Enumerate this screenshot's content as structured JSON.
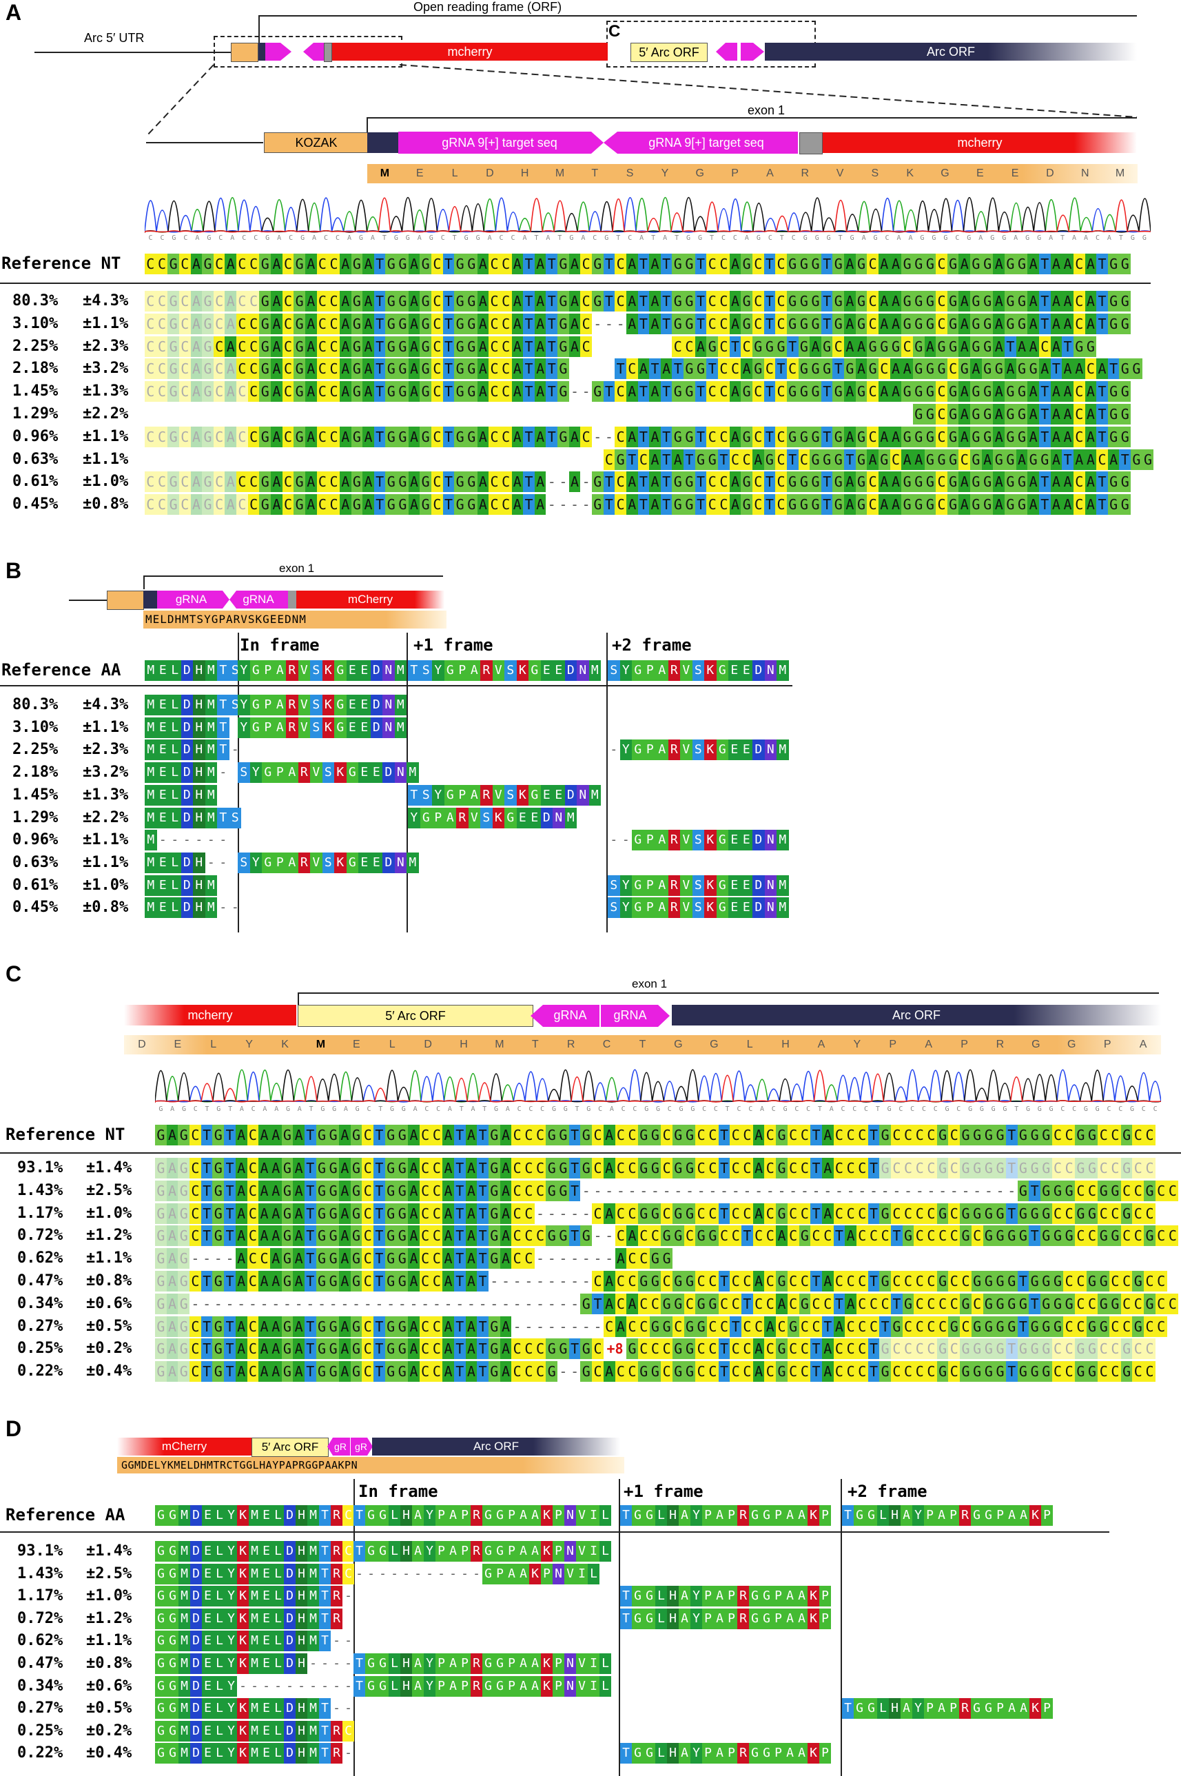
{
  "panels": {
    "A": "A",
    "B": "B",
    "C": "C",
    "D": "D"
  },
  "panelA": {
    "top_map": {
      "orf_label": "Open reading frame (ORF)",
      "utr_label": "Arc 5′ UTR",
      "mcherry": "mcherry",
      "arc5orf": "5′ Arc ORF",
      "arcorf": "Arc ORF",
      "c_box": "C"
    },
    "zoom_map": {
      "kozak": "KOZAK",
      "exon": "exon 1",
      "grna1": "gRNA 9[+] target seq",
      "grna2": "gRNA 9[+] target seq",
      "mcherry": "mcherry"
    },
    "aa_track": [
      "M",
      "E",
      "L",
      "D",
      "H",
      "M",
      "T",
      "S",
      "Y",
      "G",
      "P",
      "A",
      "R",
      "V",
      "S",
      "K",
      "G",
      "E",
      "E",
      "D",
      "N",
      "M"
    ],
    "chrom_seq": "CCGCAGCACCGACGACCAGATGGAGCTGGACCATATGACGTCATATGGTCCAGCTCGGGTGAGCAAGGGCGAGGAGGATAACATGG",
    "ref_label": "Reference NT",
    "ref_seq": "CCGCAGCACCGACGACCAGATGGAGCTGGACCATATGACGTCATATGGTCCAGCTCGGGTGAGCAAGGGCGAGGAGGATAACATGG",
    "rows": [
      {
        "pct": "80.3%",
        "err": "±4.3%",
        "seq": "CCGCAGCACCGACGACCAGATGGAGCTGGACCATATGACGTCATATGGTCCAGCTCGGGTGAGCAAGGGCGAGGAGGATAACATGG",
        "fade": 10
      },
      {
        "pct": "3.10%",
        "err": "±1.1%",
        "seq": "CCGCAGCACCGACGACCAGATGGAGCTGGACCATATGAC---ATATGGTCCAGCTCGGGTGAGCAAGGGCGAGGAGGATAACATGG",
        "fade": 8
      },
      {
        "pct": "2.25%",
        "err": "±2.3%",
        "seq": "CCGCAGCACCGACGACCAGATGGAGCTGGACCATATGAC       CCAGCTCGGGTGAGCAAGGGCGAGGAGGATAACATGG",
        "fade": 6
      },
      {
        "pct": "2.18%",
        "err": "±3.2%",
        "seq": "CCGCAGCACCGACGACCAGATGGAGCTGGACCATATG    TCATATGGTCCAGCTCGGGTGAGCAAGGGCGAGGAGGATAACATGG",
        "fade": 8
      },
      {
        "pct": "1.45%",
        "err": "±1.3%",
        "seq": "CCGCAGCACCGACGACCAGATGGAGCTGGACCATATG--GTCATATGGTCCAGCTCGGGTGAGCAAGGGCGAGGAGGATAACATGG",
        "fade": 9
      },
      {
        "pct": "1.29%",
        "err": "±2.2%",
        "seq": "                                                                   GGCGAGGAGGATAACATGG",
        "fade": 0
      },
      {
        "pct": "0.96%",
        "err": "±1.1%",
        "seq": "CCGCAGCACCGACGACCAGATGGAGCTGGACCATATGAC--CATATGGTCCAGCTCGGGTGAGCAAGGGCGAGGAGGATAACATGG",
        "fade": 9
      },
      {
        "pct": "0.63%",
        "err": "±1.1%",
        "seq": "                                        CGTCATATGGTCCAGCTCGGGTGAGCAAGGGCGAGGAGGATAACATGG",
        "fade": 0
      },
      {
        "pct": "0.61%",
        "err": "±1.0%",
        "seq": "CCGCAGCACCGACGACCAGATGGAGCTGGACCATA--A-GTCATATGGTCCAGCTCGGGTGAGCAAGGGCGAGGAGGATAACATGG",
        "fade": 8
      },
      {
        "pct": "0.45%",
        "err": "±0.8%",
        "seq": "CCGCAGCACCGACGACCAGATGGAGCTGGACCATA----GTCATATGGTCCAGCTCGGGTGAGCAAGGGCGAGGAGGATAACATGG",
        "fade": 9
      }
    ]
  },
  "panelB": {
    "exon": "exon 1",
    "grna1": "gRNA",
    "grna2": "gRNA",
    "mcherry": "mCherry",
    "aa_line": "MELDHMTSYGPARVSKGEEDNM",
    "frame_in": "In frame",
    "frame_p1": "+1 frame",
    "frame_p2": "+2 frame",
    "ref_label": "Reference AA",
    "ref_main": "MELDHMTS",
    "ref_in": "YGPARVSKGEEDNM",
    "ref_p1": "TSYGPARVSKGEEDNM",
    "ref_p2": "SYGPARVSKGEEDNM",
    "rows": [
      {
        "pct": "80.3%",
        "err": "±4.3%",
        "main": "MELDHMTS",
        "in": "YGPARVSKGEEDNM",
        "p1": "",
        "p2": ""
      },
      {
        "pct": "3.10%",
        "err": "±1.1%",
        "main": "MELDHMT",
        "in": "YGPARVSKGEEDNM",
        "p1": "",
        "p2": ""
      },
      {
        "pct": "2.25%",
        "err": "±2.3%",
        "main": "MELDHMT-",
        "in": "",
        "p1": "",
        "p2": "-YGPARVSKGEEDNM"
      },
      {
        "pct": "2.18%",
        "err": "±3.2%",
        "main": "MELDHM-",
        "in": "SYGPARVSKGEEDNM",
        "p1": "",
        "p2": ""
      },
      {
        "pct": "1.45%",
        "err": "±1.3%",
        "main": "MELDHM",
        "in": "",
        "p1": "TSYGPARVSKGEEDNM",
        "p2": ""
      },
      {
        "pct": "1.29%",
        "err": "±2.2%",
        "main": "MELDHMTS",
        "in": "",
        "p1": "YGPARVSKGEEDNM",
        "p2": ""
      },
      {
        "pct": "0.96%",
        "err": "±1.1%",
        "main": "M------",
        "in": "",
        "p1": "",
        "p2": "--GPARVSKGEEDNM"
      },
      {
        "pct": "0.63%",
        "err": "±1.1%",
        "main": "MELDH--",
        "in": "SYGPARVSKGEEDNM",
        "p1": "",
        "p2": ""
      },
      {
        "pct": "0.61%",
        "err": "±1.0%",
        "main": "MELDHM",
        "in": "",
        "p1": "",
        "p2": "SYGPARVSKGEEDNM"
      },
      {
        "pct": "0.45%",
        "err": "±0.8%",
        "main": "MELDHM--",
        "in": "",
        "p1": "",
        "p2": "SYGPARVSKGEEDNM"
      }
    ]
  },
  "panelC": {
    "exon": "exon 1",
    "mcherry": "mcherry",
    "arc5orf": "5′ Arc ORF",
    "grna1": "gRNA",
    "grna2": "gRNA",
    "arcorf": "Arc ORF",
    "aa_track": [
      "D",
      "E",
      "L",
      "Y",
      "K",
      "M",
      "E",
      "L",
      "D",
      "H",
      "M",
      "T",
      "R",
      "C",
      "T",
      "G",
      "G",
      "L",
      "H",
      "A",
      "Y",
      "P",
      "A",
      "P",
      "R",
      "G",
      "G",
      "P",
      "A"
    ],
    "chrom_seq": "GAGCTGTACAAGATGGAGCTGGACCATATGACCCGGTGCACCGGCGGCCTCCACGCCTACCCTGCCCCGCGGGGTGGGCCGGCCGCC",
    "ref_label": "Reference NT",
    "ref_seq": "GAGCTGTACAAGATGGAGCTGGACCATATGACCCGGTGCACCGGCGGCCTCCACGCCTACCCTGCCCCGCGGGGTGGGCCGGCCGCC",
    "rows": [
      {
        "pct": "93.1%",
        "err": "±1.4%",
        "seq": "GAGCTGTACAAGATGGAGCTGGACCATATGACCCGGTGCACCGGCGGCCTCCACGCCTACCCTGCCCCGCGGGGTGGGCCGGCCGCC"
      },
      {
        "pct": "1.43%",
        "err": "±2.5%",
        "seq": "GAGCTGTACAAGATGGAGCTGGACCATATGACCCGGT--------------------------------------GTGGGCCGGCCGCC"
      },
      {
        "pct": "1.17%",
        "err": "±1.0%",
        "seq": "GAGCTGTACAAGATGGAGCTGGACCATATGACC-----CACCGGCGGCCTCCACGCCTACCCTGCCCCGCGGGGTGGGCCGGCCGCC"
      },
      {
        "pct": "0.72%",
        "err": "±1.2%",
        "seq": "GAGCTGTACAAGATGGAGCTGGACCATATGACCCGGTG--CACCGGCGGCCTCCACGCCTACCCTGCCCCGCGGGGTGGGCCGGCCGCC"
      },
      {
        "pct": "0.62%",
        "err": "±1.1%",
        "seq": "GAG----ACCAGATGGAGCTGGACCATATGACC-------ACCGG"
      },
      {
        "pct": "0.47%",
        "err": "±0.8%",
        "seq": "GAGCTGTACAAGATGGAGCTGGACCATAT---------CACCGGCGGCCTCCACGCCTACCCTGCCCCGCCGGGGTGGGCCGGCCGCC"
      },
      {
        "pct": "0.34%",
        "err": "±0.6%",
        "seq": "GAG----------------------------------GTACACCGGCGGCCTCCACGCCTACCCTGCCCCGCGGGGTGGGCCGGCCGCC"
      },
      {
        "pct": "0.27%",
        "err": "±0.5%",
        "seq": "GAGCTGTACAAGATGGAGCTGGACCATATGA--------CACCGGCGGCCTCCACGCCTACCCTGCCCCGCGGGGTGGGCCGGCCGCC"
      },
      {
        "pct": "0.25%",
        "err": "±0.2%",
        "seq": "GAGCTGTACAAGATGGAGCTGGACCATATGACCCGGTGC+8GCCCGGCCTCCACGCCTACCCTGCCCCGCGGGGTGGGCCGGCCGCC"
      },
      {
        "pct": "0.22%",
        "err": "±0.4%",
        "seq": "GAGCTGTACAAGATGGAGCTGGACCATATGACCCG--GCACCGGCGGCCTCCACGCCTACCCTGCCCCGCGGGGTGGGCCGGCCGCC"
      }
    ],
    "insert_label": "+8"
  },
  "panelD": {
    "mcherry": "mCherry",
    "arc5orf": "5′ Arc ORF",
    "grna1": "gR",
    "grna2": "gR",
    "arcorf": "Arc ORF",
    "aa_line": "GGMDELYKMELDHMTRCTGGLHAYPAPRGGPAAKPN",
    "frame_in": "In frame",
    "frame_p1": "+1 frame",
    "frame_p2": "+2 frame",
    "ref_label": "Reference AA",
    "ref_main": "GGMDELYKMELDHMTRC",
    "ref_in": "TGGLHAYPAPRGGPAAKPNVIL",
    "ref_p1": "TGGLHAYPAPRGGPAAKP",
    "ref_p2": "TGGLHAYPAPRGGPAAKP",
    "rows": [
      {
        "pct": "93.1%",
        "err": "±1.4%",
        "main": "GGMDELYKMELDHMTRC",
        "in": "TGGLHAYPAPRGGPAAKPNVIL",
        "p1": "",
        "p2": ""
      },
      {
        "pct": "1.43%",
        "err": "±2.5%",
        "main": "GGMDELYKMELDHMTRC",
        "in": "-----------GPAAKPNVIL",
        "p1": "",
        "p2": ""
      },
      {
        "pct": "1.17%",
        "err": "±1.0%",
        "main": "GGMDELYKMELDHMTR-",
        "in": "",
        "p1": "TGGLHAYPAPRGGPAAKP",
        "p2": ""
      },
      {
        "pct": "0.72%",
        "err": "±1.2%",
        "main": "GGMDELYKMELDHMTR",
        "in": "",
        "p1": "TGGLHAYPAPRGGPAAKP",
        "p2": ""
      },
      {
        "pct": "0.62%",
        "err": "±1.1%",
        "main": "GGMDELYKMELDHMT--",
        "in": "",
        "p1": "",
        "p2": ""
      },
      {
        "pct": "0.47%",
        "err": "±0.8%",
        "main": "GGMDELYKMELDH----",
        "in": "TGGLHAYPAPRGGPAAKPNVIL",
        "p1": "",
        "p2": ""
      },
      {
        "pct": "0.34%",
        "err": "±0.6%",
        "main": "GGMDELY----------",
        "in": "TGGLHAYPAPRGGPAAKPNVIL",
        "p1": "",
        "p2": ""
      },
      {
        "pct": "0.27%",
        "err": "±0.5%",
        "main": "GGMDELYKMELDHMT--",
        "in": "",
        "p1": "",
        "p2": "TGGLHAYPAPRGGPAAKP"
      },
      {
        "pct": "0.25%",
        "err": "±0.2%",
        "main": "GGMDELYKMELDHMTRC",
        "in": "",
        "p1": "",
        "p2": ""
      },
      {
        "pct": "0.22%",
        "err": "±0.4%",
        "main": "GGMDELYKMELDHMTR-",
        "in": "",
        "p1": "TGGLHAYPAPRGGPAAKP",
        "p2": ""
      }
    ]
  }
}
